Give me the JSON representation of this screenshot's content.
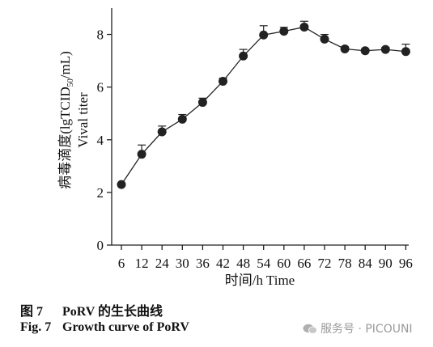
{
  "chart_data": {
    "type": "line",
    "xlabel": "时间/h Time",
    "ylabel_cn": "病毒滴度(lgTCID",
    "ylabel_sub": "50",
    "ylabel_tail": "/mL)",
    "ylabel_en": "Vival titer",
    "categories": [
      "6",
      "12",
      "24",
      "30",
      "36",
      "42",
      "48",
      "54",
      "60",
      "66",
      "72",
      "78",
      "84",
      "90",
      "96"
    ],
    "values": [
      2.3,
      3.45,
      4.3,
      4.78,
      5.42,
      6.22,
      7.18,
      7.98,
      8.12,
      8.28,
      7.82,
      7.45,
      7.38,
      7.43,
      7.35
    ],
    "errors": [
      0,
      0.35,
      0.22,
      0.18,
      0.16,
      0.12,
      0.25,
      0.35,
      0.15,
      0.22,
      0.18,
      0.08,
      0.08,
      0.08,
      0.28
    ],
    "ylim": [
      0,
      9
    ],
    "yticks": [
      "0",
      "2",
      "4",
      "6",
      "8"
    ],
    "grid": false,
    "marker_color": "#222222"
  },
  "caption": {
    "cn_num": "图 7",
    "cn_text": "PoRV 的生长曲线",
    "en_num": "Fig. 7",
    "en_text": "Growth curve of PoRV"
  },
  "watermark": {
    "text": "服务号 · PICOUNI",
    "icon": "wechat-icon"
  }
}
